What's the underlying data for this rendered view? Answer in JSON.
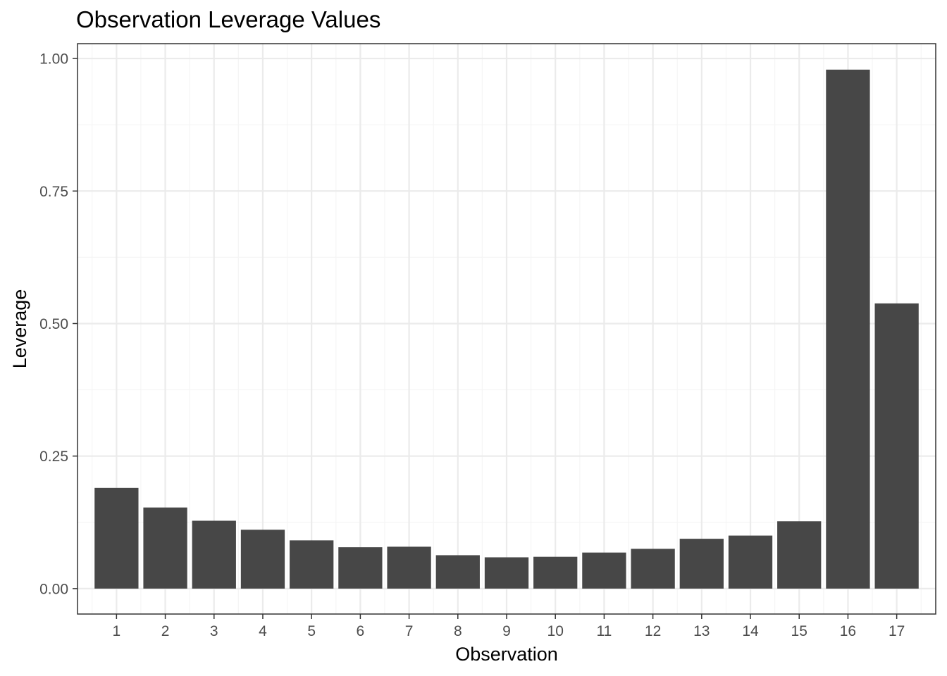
{
  "chart_data": {
    "type": "bar",
    "title": "Observation Leverage Values",
    "xlabel": "Observation",
    "ylabel": "Leverage",
    "categories": [
      "1",
      "2",
      "3",
      "4",
      "5",
      "6",
      "7",
      "8",
      "9",
      "10",
      "11",
      "12",
      "13",
      "14",
      "15",
      "16",
      "17"
    ],
    "values": [
      0.19,
      0.153,
      0.128,
      0.111,
      0.091,
      0.078,
      0.079,
      0.063,
      0.059,
      0.06,
      0.068,
      0.075,
      0.094,
      0.1,
      0.127,
      0.979,
      0.538
    ],
    "ylim": [
      -0.048,
      1.028
    ],
    "y_ticks": [
      0,
      0.25,
      0.5,
      0.75,
      1
    ],
    "y_tick_labels": [
      "0.00",
      "0.25",
      "0.50",
      "0.75",
      "1.00"
    ],
    "grid": true,
    "legend": "none",
    "colors": {
      "bar": "#474747",
      "panel_border": "#333333",
      "grid_major": "#ebebeb",
      "grid_minor": "#f5f5f5",
      "tick_label": "#4d4d4d",
      "axis_tick": "#333333"
    }
  }
}
